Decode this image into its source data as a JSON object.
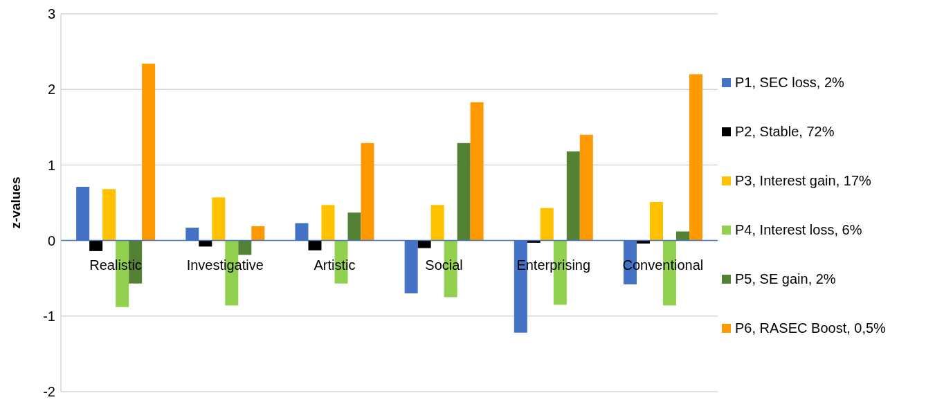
{
  "chart_data": {
    "type": "bar",
    "ylabel": "z-values",
    "categories": [
      "Realistic",
      "Investigative",
      "Artistic",
      "Social",
      "Enterprising",
      "Conventional"
    ],
    "series": [
      {
        "name": "P1, SEC loss, 2%",
        "color": "#4472c4",
        "values": [
          0.71,
          0.17,
          0.23,
          -0.7,
          -1.22,
          -0.58
        ]
      },
      {
        "name": "P2, Stable, 72%",
        "color": "#000000",
        "values": [
          -0.14,
          -0.08,
          -0.13,
          -0.1,
          -0.03,
          -0.04
        ]
      },
      {
        "name": "P3, Interest gain, 17%",
        "color": "#ffc000",
        "values": [
          0.68,
          0.57,
          0.47,
          0.47,
          0.43,
          0.51
        ]
      },
      {
        "name": "P4, Interest loss, 6%",
        "color": "#92d050",
        "values": [
          -0.88,
          -0.86,
          -0.57,
          -0.75,
          -0.85,
          -0.86
        ]
      },
      {
        "name": "P5, SE gain, 2%",
        "color": "#548235",
        "values": [
          -0.57,
          -0.19,
          0.37,
          1.29,
          1.18,
          0.12
        ]
      },
      {
        "name": "P6, RASEC Boost, 0,5%",
        "color": "#ff9900",
        "values": [
          2.34,
          0.19,
          1.29,
          1.83,
          1.4,
          2.2
        ]
      }
    ],
    "ylim": [
      -2,
      3
    ],
    "yticks": [
      -2,
      -1,
      0,
      1,
      2,
      3
    ],
    "grid": "y",
    "legend": "right"
  }
}
